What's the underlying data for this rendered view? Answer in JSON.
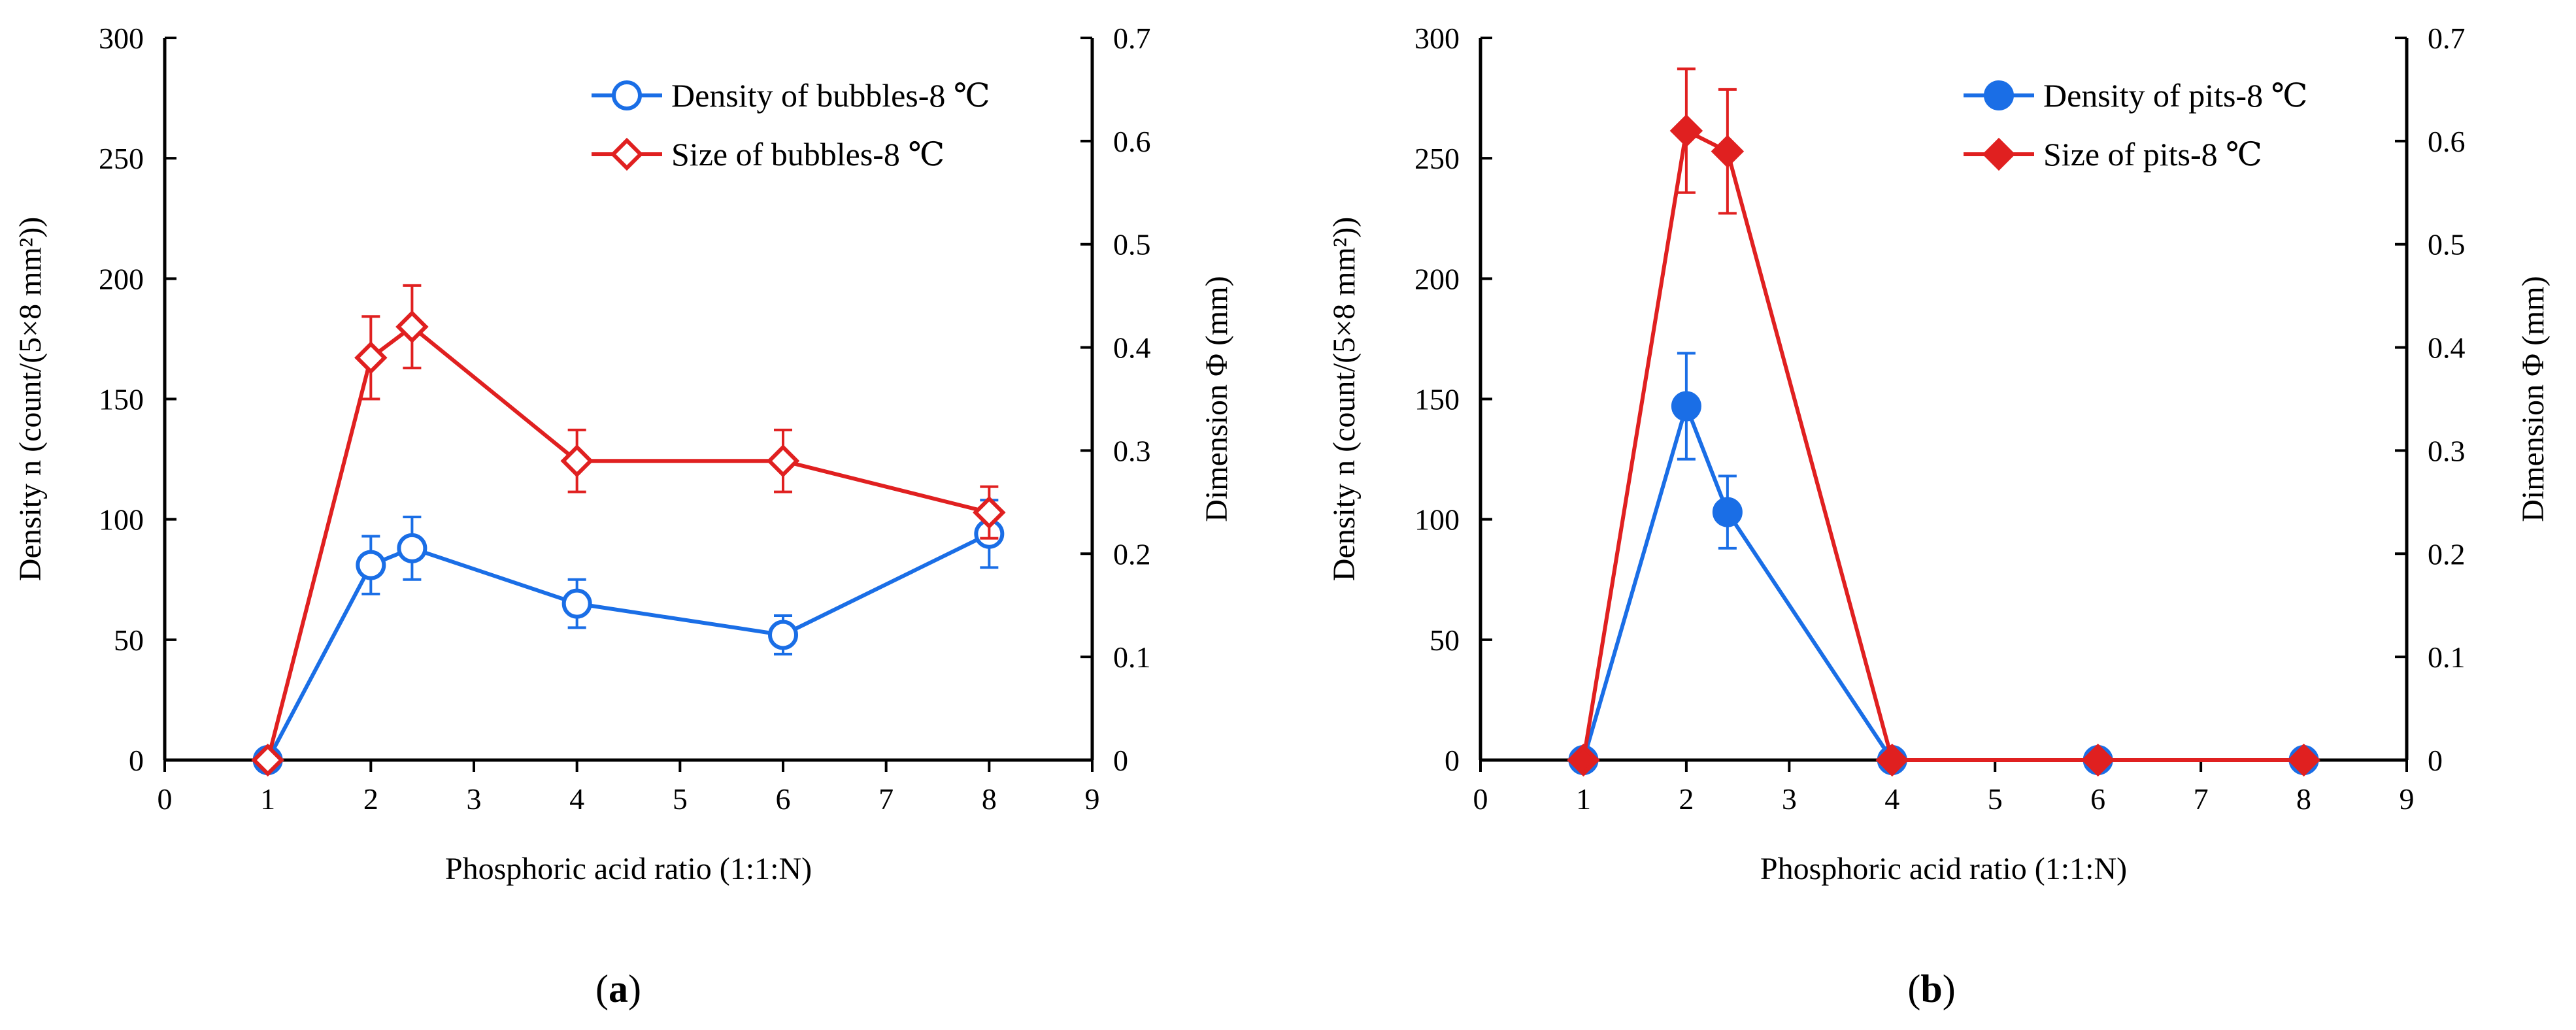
{
  "chart_data": [
    {
      "type": "line",
      "panel_label_open": "(",
      "panel_label": "a",
      "panel_label_close": ")",
      "xlabel": "Phosphoric acid ratio (1:1:N)",
      "ylabel": "Density n (count/(5×8 mm²))",
      "y2label": "Dimension Φ (mm)",
      "xlim": [
        0,
        9
      ],
      "ylim": [
        0,
        300
      ],
      "y2lim": [
        0,
        0.7
      ],
      "xticks": [
        0,
        1,
        2,
        3,
        4,
        5,
        6,
        7,
        8,
        9
      ],
      "yticks": [
        0,
        50,
        100,
        150,
        200,
        250,
        300
      ],
      "y2ticks": [
        0,
        0.1,
        0.2,
        0.3,
        0.4,
        0.5,
        0.6,
        0.7
      ],
      "grid": false,
      "legend_position": "top-right",
      "series": [
        {
          "name": "Density of bubbles-8 ℃",
          "axis": "left",
          "marker": "circle",
          "filled": false,
          "color": "#1a6ee6",
          "x": [
            1,
            2,
            2.4,
            4,
            6,
            8
          ],
          "y": [
            0,
            81,
            88,
            65,
            52,
            94
          ],
          "error": [
            0,
            12,
            13,
            10,
            8,
            14
          ]
        },
        {
          "name": "Size of bubbles-8 ℃",
          "axis": "right",
          "marker": "diamond",
          "filled": false,
          "color": "#e02020",
          "x": [
            1,
            2,
            2.4,
            4,
            6,
            8
          ],
          "y": [
            0,
            0.39,
            0.42,
            0.29,
            0.29,
            0.24
          ],
          "error": [
            0,
            0.04,
            0.04,
            0.03,
            0.03,
            0.025
          ]
        }
      ]
    },
    {
      "type": "line",
      "panel_label_open": "(",
      "panel_label": "b",
      "panel_label_close": ")",
      "xlabel": "Phosphoric acid ratio (1:1:N)",
      "ylabel": "Density n (count/(5×8 mm²))",
      "y2label": "Dimension Φ (mm)",
      "xlim": [
        0,
        9
      ],
      "ylim": [
        0,
        300
      ],
      "y2lim": [
        0,
        0.7
      ],
      "xticks": [
        0,
        1,
        2,
        3,
        4,
        5,
        6,
        7,
        8,
        9
      ],
      "yticks": [
        0,
        50,
        100,
        150,
        200,
        250,
        300
      ],
      "y2ticks": [
        0,
        0.1,
        0.2,
        0.3,
        0.4,
        0.5,
        0.6,
        0.7
      ],
      "grid": false,
      "legend_position": "top-right",
      "series": [
        {
          "name": "Density of pits-8 ℃",
          "axis": "left",
          "marker": "circle",
          "filled": true,
          "color": "#1a6ee6",
          "x": [
            1,
            2,
            2.4,
            4,
            6,
            8
          ],
          "y": [
            0,
            147,
            103,
            0,
            0,
            0
          ],
          "error": [
            0,
            22,
            15,
            0,
            0,
            0
          ]
        },
        {
          "name": "Size of pits-8 ℃",
          "axis": "right",
          "marker": "diamond",
          "filled": true,
          "color": "#e02020",
          "x": [
            1,
            2,
            2.4,
            4,
            6,
            8
          ],
          "y": [
            0,
            0.61,
            0.59,
            0,
            0,
            0
          ],
          "error": [
            0,
            0.06,
            0.06,
            0,
            0,
            0
          ]
        }
      ]
    }
  ]
}
